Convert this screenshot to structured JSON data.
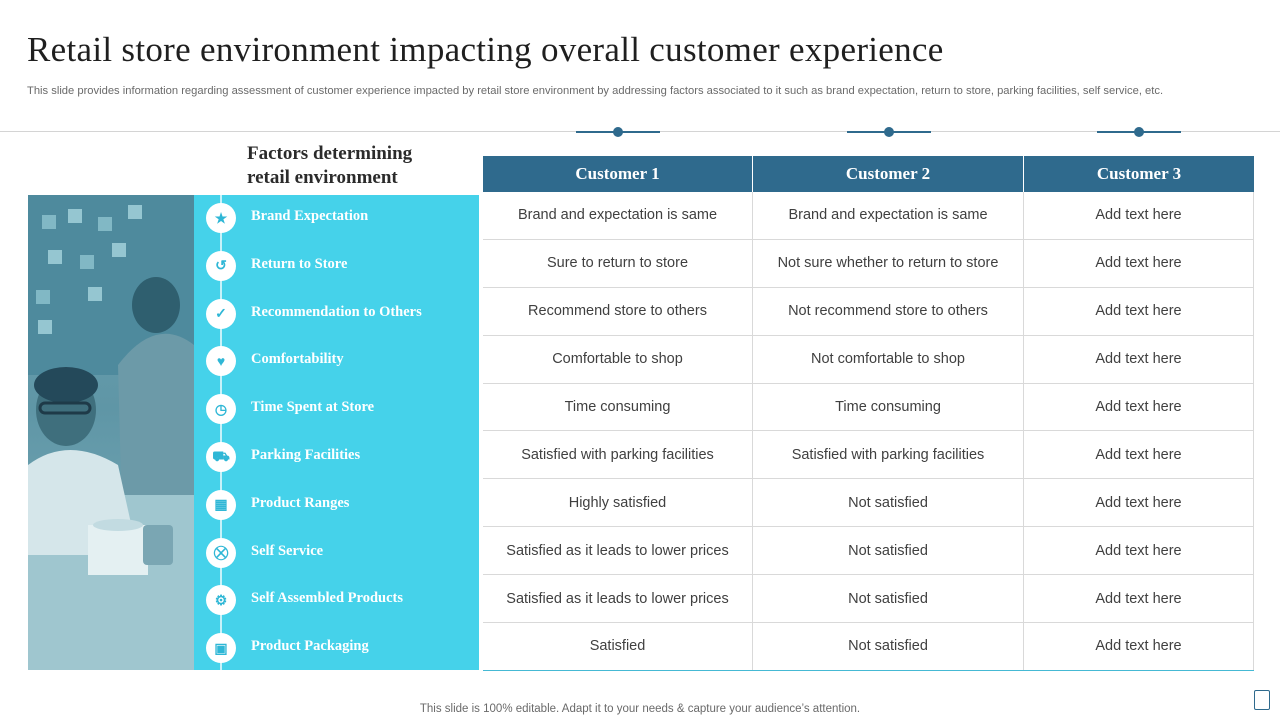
{
  "slide": {
    "title": "Retail store environment impacting overall customer experience",
    "subtitle": "This slide provides information regarding assessment of customer experience impacted by retail store environment by addressing factors associated to it such as brand expectation, return to store, parking facilities, self service, etc.",
    "factors_heading_line1": "Factors determining",
    "factors_heading_line2": "retail environment",
    "footer": "This slide is 100% editable. Adapt it to your needs & capture your audience’s attention."
  },
  "colors": {
    "header_blue": "#2f6a8d",
    "panel_cyan": "#45d2ea"
  },
  "table": {
    "headers": [
      "Customer 1",
      "Customer 2",
      "Customer 3"
    ],
    "rows": [
      {
        "factor": "Brand Expectation",
        "icon": "brand-icon",
        "c1": "Brand and expectation is same",
        "c2": "Brand and expectation is same",
        "c3": "Add text here"
      },
      {
        "factor": "Return to Store",
        "icon": "return-icon",
        "c1": "Sure to return to store",
        "c2": "Not sure whether to return to store",
        "c3": "Add text here"
      },
      {
        "factor": "Recommendation  to Others",
        "icon": "recommend-icon",
        "c1": "Recommend store to others",
        "c2": "Not recommend store to others",
        "c3": "Add text here"
      },
      {
        "factor": "Comfortability",
        "icon": "comfort-icon",
        "c1": "Comfortable to shop",
        "c2": "Not comfortable to shop",
        "c3": "Add text here"
      },
      {
        "factor": "Time Spent at Store",
        "icon": "time-icon",
        "c1": "Time consuming",
        "c2": "Time consuming",
        "c3": "Add text here"
      },
      {
        "factor": "Parking Facilities",
        "icon": "car-icon",
        "c1": "Satisfied with parking facilities",
        "c2": "Satisfied with parking facilities",
        "c3": "Add text here"
      },
      {
        "factor": "Product  Ranges",
        "icon": "product-range-icon",
        "c1": "Highly satisfied",
        "c2": "Not satisfied",
        "c3": "Add text here"
      },
      {
        "factor": "Self Service",
        "icon": "self-service-icon",
        "c1": "Satisfied as it leads to lower prices",
        "c2": "Not satisfied",
        "c3": "Add text here"
      },
      {
        "factor": "Self Assembled Products",
        "icon": "assembled-icon",
        "c1": "Satisfied as it leads to lower prices",
        "c2": "Not satisfied",
        "c3": "Add text here"
      },
      {
        "factor": "Product  Packaging",
        "icon": "packaging-icon",
        "c1": "Satisfied",
        "c2": "Not satisfied",
        "c3": "Add text here"
      }
    ]
  }
}
